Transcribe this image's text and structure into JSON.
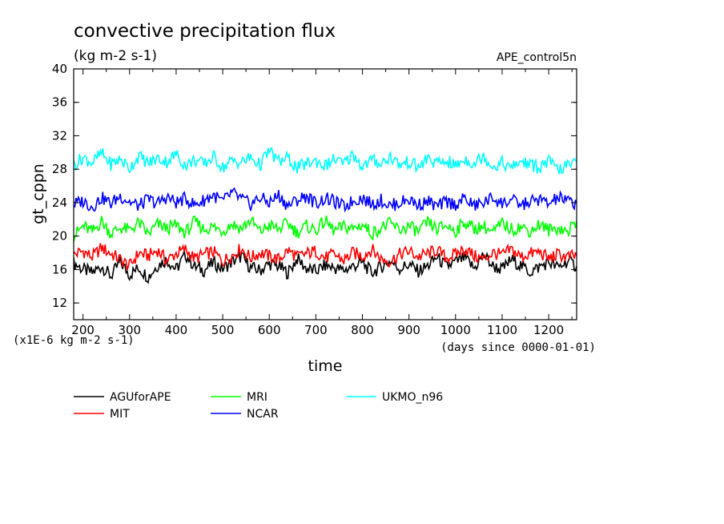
{
  "chart_data": {
    "type": "line",
    "title": "convective precipitation flux",
    "units": "(kg m-2 s-1)",
    "dataset": "APE_control5n",
    "ylabel": "gt_cppn",
    "xlabel": "time",
    "y_scale_note": "(x1E-6 kg m-2 s-1)",
    "x_units_note": "(days since 0000-01-01)",
    "xlim": [
      180,
      1260
    ],
    "ylim": [
      10,
      40
    ],
    "x_ticks": [
      200,
      300,
      400,
      500,
      600,
      700,
      800,
      900,
      1000,
      1100,
      1200
    ],
    "y_ticks": [
      12,
      16,
      20,
      24,
      28,
      32,
      36,
      40
    ],
    "grid": false,
    "legend_position": "bottom",
    "series": [
      {
        "name": "AGUforAPE",
        "color": "#000000",
        "x": [
          180,
          200,
          220,
          240,
          260,
          280,
          300,
          320,
          340,
          360,
          380,
          400,
          420,
          440,
          460,
          480,
          500,
          520,
          540,
          560,
          580,
          600,
          620,
          640,
          660,
          680,
          700,
          720,
          740,
          760,
          780,
          800,
          820,
          840,
          860,
          880,
          900,
          920,
          940,
          960,
          980,
          1000,
          1020,
          1040,
          1060,
          1080,
          1100,
          1120,
          1140,
          1160,
          1180,
          1200,
          1220,
          1240,
          1260
        ],
        "values": [
          16.8,
          16.0,
          15.6,
          16.4,
          15.2,
          16.9,
          15.4,
          16.2,
          15.1,
          16.5,
          17.2,
          16.0,
          17.8,
          16.3,
          15.9,
          16.8,
          16.1,
          16.9,
          17.6,
          16.2,
          15.9,
          16.7,
          16.4,
          15.6,
          17.3,
          16.1,
          15.8,
          16.5,
          16.2,
          15.9,
          16.4,
          16.8,
          15.6,
          16.3,
          17.0,
          16.1,
          16.6,
          15.8,
          16.4,
          17.5,
          16.3,
          16.9,
          17.4,
          16.1,
          17.8,
          16.4,
          16.0,
          17.2,
          16.5,
          15.7,
          16.3,
          16.9,
          16.2,
          17.0,
          16.4
        ]
      },
      {
        "name": "MIT",
        "color": "#ff0000",
        "x": [
          180,
          200,
          220,
          240,
          260,
          280,
          300,
          320,
          340,
          360,
          380,
          400,
          420,
          440,
          460,
          480,
          500,
          520,
          540,
          560,
          580,
          600,
          620,
          640,
          660,
          680,
          700,
          720,
          740,
          760,
          780,
          800,
          820,
          840,
          860,
          880,
          900,
          920,
          940,
          960,
          980,
          1000,
          1020,
          1040,
          1060,
          1080,
          1100,
          1120,
          1140,
          1160,
          1180,
          1200,
          1220,
          1240,
          1260
        ],
        "values": [
          17.8,
          18.2,
          17.5,
          18.6,
          17.9,
          17.2,
          16.4,
          18.0,
          17.6,
          18.3,
          17.1,
          17.9,
          18.4,
          17.3,
          17.8,
          18.1,
          17.0,
          17.7,
          18.5,
          17.4,
          18.0,
          17.6,
          17.2,
          18.3,
          17.5,
          17.9,
          18.2,
          17.4,
          17.8,
          17.1,
          18.0,
          17.6,
          18.4,
          17.3,
          17.0,
          17.8,
          18.2,
          17.5,
          17.9,
          18.3,
          17.4,
          17.8,
          18.5,
          17.6,
          17.2,
          18.0,
          17.7,
          18.4,
          17.5,
          17.9,
          18.1,
          17.3,
          17.8,
          17.5,
          17.6
        ]
      },
      {
        "name": "MRI",
        "color": "#00ff00",
        "x": [
          180,
          200,
          220,
          240,
          260,
          280,
          300,
          320,
          340,
          360,
          380,
          400,
          420,
          440,
          460,
          480,
          500,
          520,
          540,
          560,
          580,
          600,
          620,
          640,
          660,
          680,
          700,
          720,
          740,
          760,
          780,
          800,
          820,
          840,
          860,
          880,
          900,
          920,
          940,
          960,
          980,
          1000,
          1020,
          1040,
          1060,
          1080,
          1100,
          1120,
          1140,
          1160,
          1180,
          1200,
          1220,
          1240,
          1260
        ],
        "values": [
          20.0,
          21.2,
          20.5,
          21.8,
          20.3,
          21.0,
          20.7,
          21.6,
          20.2,
          21.4,
          20.9,
          21.3,
          20.4,
          21.7,
          20.8,
          21.1,
          20.6,
          21.5,
          20.9,
          21.9,
          20.5,
          21.3,
          20.8,
          21.6,
          20.4,
          21.2,
          20.7,
          21.8,
          20.6,
          21.1,
          20.9,
          21.4,
          20.3,
          21.0,
          21.5,
          20.7,
          21.2,
          20.5,
          21.6,
          20.8,
          21.3,
          20.6,
          21.7,
          20.9,
          21.2,
          20.4,
          21.5,
          20.8,
          21.1,
          20.6,
          21.4,
          20.7,
          21.0,
          20.5,
          21.8
        ]
      },
      {
        "name": "NCAR",
        "color": "#0000ff",
        "x": [
          180,
          200,
          220,
          240,
          260,
          280,
          300,
          320,
          340,
          360,
          380,
          400,
          420,
          440,
          460,
          480,
          500,
          520,
          540,
          560,
          580,
          600,
          620,
          640,
          660,
          680,
          700,
          720,
          740,
          760,
          780,
          800,
          820,
          840,
          860,
          880,
          900,
          920,
          940,
          960,
          980,
          1000,
          1020,
          1040,
          1060,
          1080,
          1100,
          1120,
          1140,
          1160,
          1180,
          1200,
          1220,
          1240,
          1260
        ],
        "values": [
          23.8,
          24.2,
          23.5,
          24.6,
          23.9,
          24.8,
          24.1,
          23.6,
          24.4,
          23.9,
          24.7,
          24.0,
          24.5,
          23.7,
          24.3,
          24.9,
          24.1,
          25.2,
          24.4,
          23.8,
          24.6,
          24.0,
          24.9,
          23.6,
          24.3,
          24.8,
          23.9,
          24.5,
          24.1,
          23.5,
          24.2,
          24.6,
          23.8,
          24.3,
          23.6,
          24.0,
          24.4,
          23.7,
          24.2,
          23.5,
          24.1,
          23.8,
          24.5,
          23.6,
          24.0,
          24.6,
          23.9,
          24.3,
          23.7,
          24.1,
          24.4,
          23.8,
          24.6,
          24.2,
          23.9
        ]
      },
      {
        "name": "UKMO_n96",
        "color": "#00ffff",
        "x": [
          180,
          200,
          220,
          240,
          260,
          280,
          300,
          320,
          340,
          360,
          380,
          400,
          420,
          440,
          460,
          480,
          500,
          520,
          540,
          560,
          580,
          600,
          620,
          640,
          660,
          680,
          700,
          720,
          740,
          760,
          780,
          800,
          820,
          840,
          860,
          880,
          900,
          920,
          940,
          960,
          980,
          1000,
          1020,
          1040,
          1060,
          1080,
          1100,
          1120,
          1140,
          1160,
          1180,
          1200,
          1220,
          1240,
          1260
        ],
        "values": [
          28.5,
          29.4,
          28.8,
          29.9,
          28.6,
          29.2,
          28.1,
          29.6,
          28.7,
          29.3,
          28.9,
          29.8,
          28.4,
          29.1,
          28.6,
          29.5,
          28.2,
          29.0,
          28.8,
          29.4,
          28.5,
          30.2,
          28.9,
          29.3,
          28.1,
          28.7,
          29.0,
          28.4,
          29.2,
          28.6,
          29.8,
          28.3,
          29.1,
          28.7,
          29.5,
          28.5,
          28.9,
          28.2,
          29.3,
          28.6,
          29.0,
          28.4,
          29.2,
          28.7,
          29.6,
          28.3,
          28.8,
          28.1,
          29.0,
          28.5,
          28.2,
          28.9,
          27.9,
          28.4,
          28.8
        ]
      }
    ]
  }
}
